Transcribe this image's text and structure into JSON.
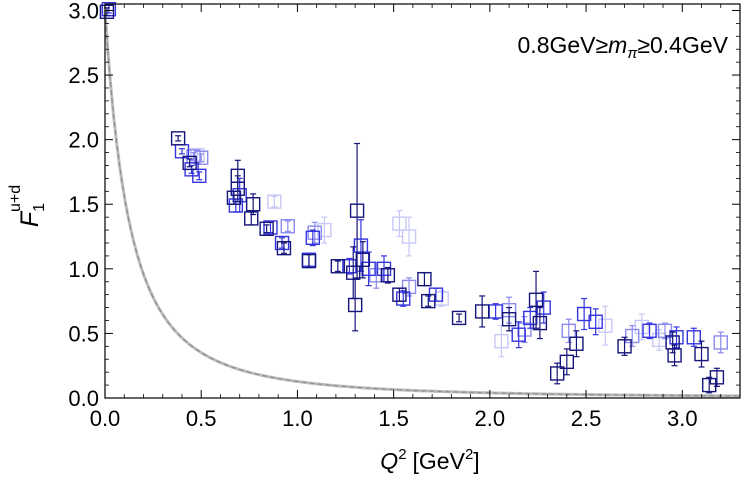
{
  "chart_data": {
    "type": "scatter",
    "title": "",
    "xlabel": "Q",
    "xlabel_sup": "2",
    "xlabel_unit": "[GeV",
    "xlabel_unit_sup": "2",
    "xlabel_unit_close": "]",
    "ylabel": "F",
    "ylabel_sub": "1",
    "ylabel_sup": "u+d",
    "annotation": {
      "left": "0.8GeV≥",
      "m": "m",
      "sub": "π",
      "right": "≥0.4GeV"
    },
    "xlim": [
      0,
      3.3
    ],
    "ylim": [
      0,
      3.05
    ],
    "xticks": [
      "0.0",
      "0.5",
      "1.0",
      "1.5",
      "2.0",
      "2.5",
      "3.0"
    ],
    "yticks": [
      "0.0",
      "0.5",
      "1.0",
      "1.5",
      "2.0",
      "2.5",
      "3.0"
    ],
    "grid": false,
    "legend": "none",
    "colors": {
      "dark": "#15157a",
      "mid": "#3535e0",
      "light": "#8a8aef",
      "pale": "#c8c8f8",
      "curve": "#8f8f8f"
    },
    "curve": {
      "name": "",
      "formula": "3/(1+Q2/0.26)^2",
      "x_start": 0,
      "x_end": 3.3,
      "style": "dashed-gray"
    },
    "series": [
      {
        "tone": "dark",
        "points": [
          {
            "x": 0.01,
            "y": 2.99,
            "err": 0.03
          },
          {
            "x": 0.38,
            "y": 2.01,
            "err": 0.02
          },
          {
            "x": 0.44,
            "y": 1.82,
            "err": 0.03
          },
          {
            "x": 0.69,
            "y": 1.72,
            "err": 0.12
          },
          {
            "x": 0.69,
            "y": 1.62,
            "err": 0.1
          },
          {
            "x": 0.67,
            "y": 1.55,
            "err": 0.05
          },
          {
            "x": 0.77,
            "y": 1.5,
            "err": 0.08
          },
          {
            "x": 0.76,
            "y": 1.39,
            "err": 0.05
          },
          {
            "x": 0.84,
            "y": 1.31,
            "err": 0.03
          },
          {
            "x": 0.93,
            "y": 1.16,
            "err": 0.04
          },
          {
            "x": 1.06,
            "y": 1.06,
            "err": 0.05
          },
          {
            "x": 1.21,
            "y": 1.02,
            "err": 0.04
          },
          {
            "x": 1.31,
            "y": 1.45,
            "err": 0.52
          },
          {
            "x": 1.29,
            "y": 0.97,
            "err": 0.2
          },
          {
            "x": 1.34,
            "y": 1.07,
            "err": 0.14
          },
          {
            "x": 1.3,
            "y": 0.72,
            "err": 0.2
          },
          {
            "x": 1.47,
            "y": 0.95,
            "err": 0.06
          },
          {
            "x": 1.53,
            "y": 0.8,
            "err": 0.05
          },
          {
            "x": 1.66,
            "y": 0.92,
            "err": 0.05
          },
          {
            "x": 1.68,
            "y": 0.75,
            "err": 0.04
          },
          {
            "x": 1.84,
            "y": 0.62,
            "err": 0.03
          },
          {
            "x": 1.96,
            "y": 0.67,
            "err": 0.12
          },
          {
            "x": 2.1,
            "y": 0.61,
            "err": 0.09
          },
          {
            "x": 2.24,
            "y": 0.76,
            "err": 0.22
          },
          {
            "x": 2.26,
            "y": 0.58,
            "err": 0.12
          },
          {
            "x": 2.35,
            "y": 0.19,
            "err": 0.08
          },
          {
            "x": 2.4,
            "y": 0.28,
            "err": 0.1
          },
          {
            "x": 2.45,
            "y": 0.42,
            "err": 0.1
          },
          {
            "x": 2.7,
            "y": 0.4,
            "err": 0.07
          },
          {
            "x": 2.95,
            "y": 0.43,
            "err": 0.08
          },
          {
            "x": 2.96,
            "y": 0.33,
            "err": 0.08
          },
          {
            "x": 3.1,
            "y": 0.34,
            "err": 0.1
          },
          {
            "x": 3.14,
            "y": 0.1,
            "err": 0.06
          },
          {
            "x": 3.18,
            "y": 0.16,
            "err": 0.07
          }
        ]
      },
      {
        "tone": "mid",
        "points": [
          {
            "x": 0.02,
            "y": 3.01,
            "err": 0.03
          },
          {
            "x": 0.4,
            "y": 1.91,
            "err": 0.02
          },
          {
            "x": 0.45,
            "y": 1.77,
            "err": 0.03
          },
          {
            "x": 0.49,
            "y": 1.72,
            "err": 0.03
          },
          {
            "x": 0.7,
            "y": 1.57,
            "err": 0.13
          },
          {
            "x": 0.68,
            "y": 1.49,
            "err": 0.05
          },
          {
            "x": 0.86,
            "y": 1.32,
            "err": 0.04
          },
          {
            "x": 0.92,
            "y": 1.2,
            "err": 0.04
          },
          {
            "x": 1.08,
            "y": 1.24,
            "err": 0.06
          },
          {
            "x": 1.06,
            "y": 1.07,
            "err": 0.05
          },
          {
            "x": 1.27,
            "y": 1.02,
            "err": 0.06
          },
          {
            "x": 1.33,
            "y": 1.18,
            "err": 0.2
          },
          {
            "x": 1.37,
            "y": 1.0,
            "err": 0.13
          },
          {
            "x": 1.45,
            "y": 1.0,
            "err": 0.1
          },
          {
            "x": 1.55,
            "y": 0.77,
            "err": 0.06
          },
          {
            "x": 1.72,
            "y": 0.8,
            "err": 0.05
          },
          {
            "x": 2.03,
            "y": 0.67,
            "err": 0.06
          },
          {
            "x": 2.15,
            "y": 0.49,
            "err": 0.1
          },
          {
            "x": 2.21,
            "y": 0.62,
            "err": 0.08
          },
          {
            "x": 2.28,
            "y": 0.7,
            "err": 0.12
          },
          {
            "x": 2.49,
            "y": 0.65,
            "err": 0.12
          },
          {
            "x": 2.55,
            "y": 0.59,
            "err": 0.1
          },
          {
            "x": 2.83,
            "y": 0.52,
            "err": 0.06
          },
          {
            "x": 2.97,
            "y": 0.47,
            "err": 0.08
          },
          {
            "x": 3.06,
            "y": 0.47,
            "err": 0.07
          }
        ]
      },
      {
        "tone": "light",
        "points": [
          {
            "x": 0.46,
            "y": 1.87,
            "err": 0.03
          },
          {
            "x": 0.5,
            "y": 1.86,
            "err": 0.03
          },
          {
            "x": 0.95,
            "y": 1.33,
            "err": 0.04
          },
          {
            "x": 1.09,
            "y": 1.28,
            "err": 0.08
          },
          {
            "x": 1.41,
            "y": 0.95,
            "err": 0.1
          },
          {
            "x": 1.58,
            "y": 0.86,
            "err": 0.07
          },
          {
            "x": 2.1,
            "y": 0.68,
            "err": 0.1
          },
          {
            "x": 2.18,
            "y": 0.53,
            "err": 0.1
          },
          {
            "x": 2.41,
            "y": 0.52,
            "err": 0.09
          },
          {
            "x": 2.74,
            "y": 0.48,
            "err": 0.08
          },
          {
            "x": 2.91,
            "y": 0.52,
            "err": 0.06
          },
          {
            "x": 3.2,
            "y": 0.43,
            "err": 0.08
          }
        ]
      },
      {
        "tone": "pale",
        "points": [
          {
            "x": 0.48,
            "y": 1.88,
            "err": 0.04
          },
          {
            "x": 0.88,
            "y": 1.52,
            "err": 0.04
          },
          {
            "x": 1.14,
            "y": 1.3,
            "err": 0.1
          },
          {
            "x": 1.53,
            "y": 1.35,
            "err": 0.1
          },
          {
            "x": 1.58,
            "y": 1.25,
            "err": 0.15
          },
          {
            "x": 1.75,
            "y": 0.77,
            "err": 0.06
          },
          {
            "x": 2.06,
            "y": 0.44,
            "err": 0.12
          },
          {
            "x": 2.6,
            "y": 0.56,
            "err": 0.15
          },
          {
            "x": 2.79,
            "y": 0.55,
            "err": 0.1
          },
          {
            "x": 2.88,
            "y": 0.45,
            "err": 0.08
          }
        ]
      }
    ]
  }
}
